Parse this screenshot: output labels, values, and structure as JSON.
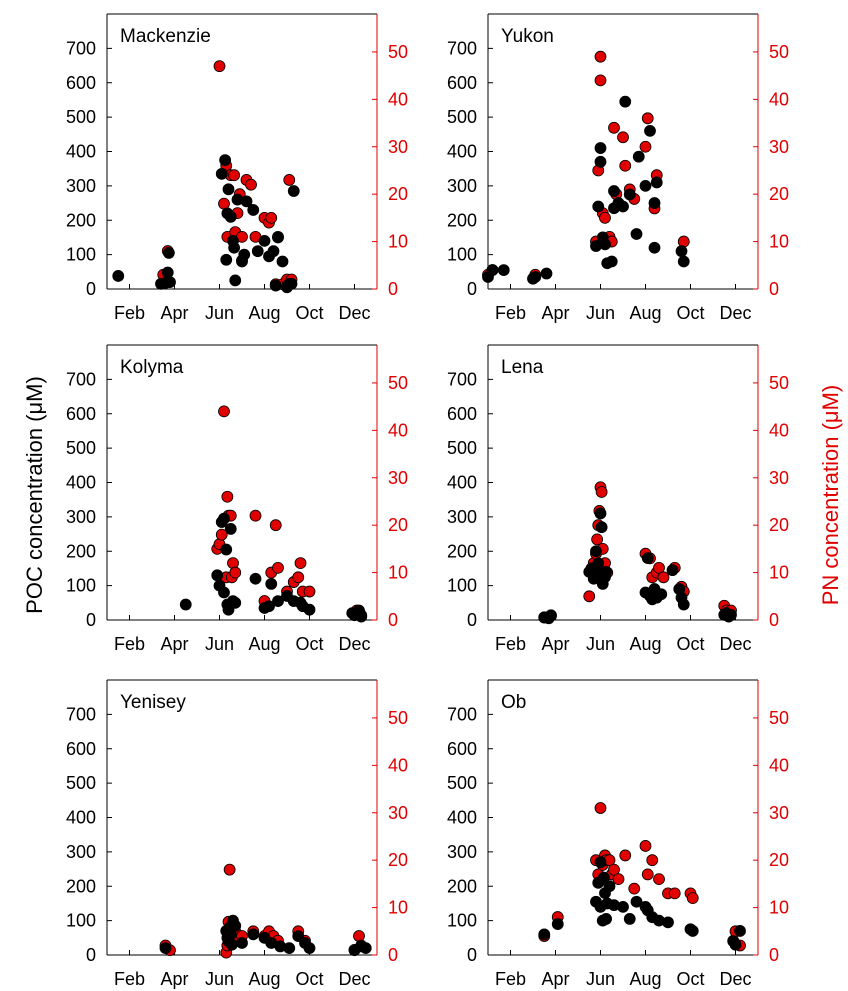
{
  "colors": {
    "poc": "#000000",
    "pn": "#e00000",
    "axis_left": "#000000",
    "axis_right": "#e00000"
  },
  "labels": {
    "ylabel_left": "POC concentration (μM)",
    "ylabel_right": "PN concentration (μM)"
  },
  "chart_data": {
    "type": "scatter",
    "layout": "3x2 panels, shared axes",
    "x_ticks": [
      "Feb",
      "Apr",
      "Jun",
      "Aug",
      "Oct",
      "Dec"
    ],
    "x_tick_months": [
      2,
      4,
      6,
      8,
      10,
      12
    ],
    "xlim": [
      1,
      13
    ],
    "poc_ylim": [
      0,
      800
    ],
    "poc_ticks": [
      0,
      100,
      200,
      300,
      400,
      500,
      600,
      700
    ],
    "pn_ylim": [
      0,
      58
    ],
    "pn_ticks": [
      0,
      10,
      20,
      30,
      40,
      50
    ],
    "grid": false,
    "panels": [
      {
        "title": "Mackenzie",
        "poc": [
          [
            1.5,
            38
          ],
          [
            3.4,
            15
          ],
          [
            3.6,
            18
          ],
          [
            3.7,
            48
          ],
          [
            3.75,
            105
          ],
          [
            3.8,
            20
          ],
          [
            6.1,
            335
          ],
          [
            6.25,
            375
          ],
          [
            6.3,
            85
          ],
          [
            6.35,
            220
          ],
          [
            6.4,
            290
          ],
          [
            6.5,
            210
          ],
          [
            6.6,
            140
          ],
          [
            6.65,
            120
          ],
          [
            6.7,
            25
          ],
          [
            6.8,
            260
          ],
          [
            7.0,
            80
          ],
          [
            7.1,
            100
          ],
          [
            7.2,
            255
          ],
          [
            7.5,
            230
          ],
          [
            7.7,
            110
          ],
          [
            8.0,
            140
          ],
          [
            8.2,
            95
          ],
          [
            8.4,
            110
          ],
          [
            8.5,
            10
          ],
          [
            8.6,
            150
          ],
          [
            8.8,
            80
          ],
          [
            9.0,
            5
          ],
          [
            9.1,
            15
          ],
          [
            9.2,
            15
          ],
          [
            9.3,
            285
          ]
        ],
        "pn": [
          [
            3.5,
            3
          ],
          [
            3.7,
            8
          ],
          [
            6.0,
            47
          ],
          [
            6.2,
            18
          ],
          [
            6.3,
            26
          ],
          [
            6.35,
            11
          ],
          [
            6.5,
            24
          ],
          [
            6.65,
            24
          ],
          [
            6.7,
            12
          ],
          [
            6.8,
            16
          ],
          [
            6.9,
            20
          ],
          [
            7.0,
            6
          ],
          [
            7.0,
            11
          ],
          [
            7.2,
            23
          ],
          [
            7.4,
            22
          ],
          [
            7.6,
            11
          ],
          [
            8.0,
            15
          ],
          [
            8.2,
            14
          ],
          [
            8.3,
            15
          ],
          [
            8.5,
            1
          ],
          [
            8.6,
            11
          ],
          [
            8.8,
            1
          ],
          [
            9.0,
            2
          ],
          [
            9.1,
            23
          ],
          [
            9.2,
            2
          ]
        ]
      },
      {
        "title": "Yukon",
        "poc": [
          [
            1.0,
            35
          ],
          [
            1.2,
            55
          ],
          [
            1.7,
            55
          ],
          [
            3.0,
            30
          ],
          [
            3.1,
            35
          ],
          [
            3.6,
            45
          ],
          [
            5.8,
            125
          ],
          [
            5.9,
            240
          ],
          [
            6.0,
            410
          ],
          [
            6.0,
            370
          ],
          [
            6.1,
            150
          ],
          [
            6.2,
            130
          ],
          [
            6.3,
            75
          ],
          [
            6.5,
            80
          ],
          [
            6.6,
            285
          ],
          [
            6.6,
            235
          ],
          [
            6.8,
            250
          ],
          [
            7.0,
            240
          ],
          [
            7.1,
            545
          ],
          [
            7.3,
            275
          ],
          [
            7.6,
            160
          ],
          [
            7.7,
            385
          ],
          [
            8.0,
            300
          ],
          [
            8.2,
            460
          ],
          [
            8.4,
            120
          ],
          [
            8.4,
            250
          ],
          [
            8.5,
            310
          ],
          [
            9.6,
            110
          ],
          [
            9.7,
            80
          ]
        ],
        "pn": [
          [
            1.0,
            3
          ],
          [
            1.2,
            4
          ],
          [
            3.1,
            3
          ],
          [
            5.8,
            10
          ],
          [
            5.9,
            25
          ],
          [
            6.0,
            44
          ],
          [
            6.0,
            49
          ],
          [
            6.1,
            16
          ],
          [
            6.2,
            15
          ],
          [
            6.4,
            11
          ],
          [
            6.5,
            10
          ],
          [
            6.6,
            34
          ],
          [
            6.7,
            20
          ],
          [
            7.0,
            32
          ],
          [
            7.1,
            26
          ],
          [
            7.3,
            21
          ],
          [
            7.5,
            19
          ],
          [
            8.0,
            30
          ],
          [
            8.1,
            36
          ],
          [
            8.4,
            17
          ],
          [
            8.5,
            24
          ],
          [
            9.7,
            10
          ]
        ]
      },
      {
        "title": "Kolyma",
        "poc": [
          [
            4.5,
            45
          ],
          [
            5.9,
            130
          ],
          [
            6.0,
            100
          ],
          [
            6.1,
            285
          ],
          [
            6.2,
            80
          ],
          [
            6.2,
            295
          ],
          [
            6.3,
            205
          ],
          [
            6.35,
            45
          ],
          [
            6.4,
            30
          ],
          [
            6.5,
            265
          ],
          [
            6.6,
            55
          ],
          [
            6.7,
            50
          ],
          [
            7.6,
            120
          ],
          [
            8.0,
            35
          ],
          [
            8.2,
            40
          ],
          [
            8.3,
            105
          ],
          [
            8.6,
            55
          ],
          [
            9.0,
            70
          ],
          [
            9.3,
            55
          ],
          [
            9.6,
            50
          ],
          [
            9.7,
            40
          ],
          [
            10.0,
            30
          ],
          [
            11.9,
            20
          ],
          [
            12.0,
            15
          ],
          [
            12.1,
            20
          ],
          [
            12.2,
            25
          ],
          [
            12.3,
            10
          ]
        ],
        "pn": [
          [
            5.9,
            15
          ],
          [
            6.0,
            16
          ],
          [
            6.1,
            18
          ],
          [
            6.2,
            44
          ],
          [
            6.3,
            9
          ],
          [
            6.35,
            26
          ],
          [
            6.4,
            22
          ],
          [
            6.5,
            22
          ],
          [
            6.55,
            9
          ],
          [
            6.6,
            12
          ],
          [
            6.7,
            10
          ],
          [
            7.6,
            22
          ],
          [
            8.0,
            4
          ],
          [
            8.3,
            10
          ],
          [
            8.5,
            20
          ],
          [
            8.6,
            11
          ],
          [
            9.0,
            6
          ],
          [
            9.3,
            8
          ],
          [
            9.5,
            9
          ],
          [
            9.6,
            12
          ],
          [
            9.7,
            6
          ],
          [
            10.0,
            6
          ],
          [
            12.0,
            1
          ],
          [
            12.1,
            2
          ],
          [
            12.2,
            2
          ],
          [
            12.3,
            1
          ]
        ]
      },
      {
        "title": "Lena",
        "poc": [
          [
            3.5,
            8
          ],
          [
            3.7,
            5
          ],
          [
            3.8,
            12
          ],
          [
            5.5,
            140
          ],
          [
            5.6,
            150
          ],
          [
            5.7,
            120
          ],
          [
            5.75,
            130
          ],
          [
            5.8,
            200
          ],
          [
            5.85,
            150
          ],
          [
            5.9,
            165
          ],
          [
            5.95,
            130
          ],
          [
            6.0,
            310
          ],
          [
            6.05,
            270
          ],
          [
            6.1,
            105
          ],
          [
            6.2,
            125
          ],
          [
            6.25,
            140
          ],
          [
            8.0,
            80
          ],
          [
            8.1,
            180
          ],
          [
            8.2,
            70
          ],
          [
            8.3,
            60
          ],
          [
            8.4,
            90
          ],
          [
            8.5,
            65
          ],
          [
            8.7,
            75
          ],
          [
            9.2,
            145
          ],
          [
            9.5,
            90
          ],
          [
            9.6,
            65
          ],
          [
            9.7,
            45
          ],
          [
            11.5,
            15
          ],
          [
            11.6,
            20
          ],
          [
            11.7,
            10
          ],
          [
            11.8,
            15
          ]
        ],
        "pn": [
          [
            3.5,
            0.5
          ],
          [
            3.8,
            1
          ],
          [
            5.5,
            5
          ],
          [
            5.7,
            12
          ],
          [
            5.8,
            14
          ],
          [
            5.85,
            17
          ],
          [
            5.9,
            20
          ],
          [
            5.95,
            23
          ],
          [
            6.0,
            28
          ],
          [
            6.05,
            27
          ],
          [
            6.1,
            15
          ],
          [
            6.2,
            12
          ],
          [
            6.3,
            10
          ],
          [
            8.0,
            14
          ],
          [
            8.2,
            13
          ],
          [
            8.3,
            9
          ],
          [
            8.5,
            10
          ],
          [
            8.6,
            11
          ],
          [
            8.8,
            9
          ],
          [
            9.3,
            11
          ],
          [
            9.6,
            7
          ],
          [
            9.7,
            6
          ],
          [
            11.5,
            3
          ],
          [
            11.6,
            2
          ],
          [
            11.8,
            2
          ]
        ]
      },
      {
        "title": "Yenisey",
        "poc": [
          [
            3.6,
            20
          ],
          [
            6.3,
            70
          ],
          [
            6.35,
            50
          ],
          [
            6.4,
            40
          ],
          [
            6.45,
            80
          ],
          [
            6.5,
            60
          ],
          [
            6.55,
            30
          ],
          [
            6.6,
            100
          ],
          [
            6.7,
            85
          ],
          [
            7.0,
            35
          ],
          [
            7.5,
            60
          ],
          [
            8.0,
            50
          ],
          [
            8.3,
            35
          ],
          [
            8.7,
            25
          ],
          [
            9.1,
            20
          ],
          [
            9.5,
            55
          ],
          [
            9.8,
            35
          ],
          [
            10.0,
            20
          ],
          [
            12.0,
            15
          ],
          [
            12.3,
            25
          ],
          [
            12.5,
            20
          ]
        ],
        "pn": [
          [
            3.6,
            2
          ],
          [
            3.8,
            1
          ],
          [
            6.3,
            0.5
          ],
          [
            6.35,
            2
          ],
          [
            6.4,
            7
          ],
          [
            6.45,
            18
          ],
          [
            6.5,
            5
          ],
          [
            6.55,
            4
          ],
          [
            6.6,
            6
          ],
          [
            6.7,
            5
          ],
          [
            6.8,
            3
          ],
          [
            7.0,
            4
          ],
          [
            7.5,
            5
          ],
          [
            8.0,
            4
          ],
          [
            8.2,
            5
          ],
          [
            8.4,
            4
          ],
          [
            8.6,
            3
          ],
          [
            9.5,
            5
          ],
          [
            9.8,
            3
          ],
          [
            12.0,
            1
          ],
          [
            12.2,
            4
          ],
          [
            12.3,
            2
          ]
        ]
      },
      {
        "title": "Ob",
        "poc": [
          [
            3.5,
            60
          ],
          [
            4.1,
            90
          ],
          [
            5.8,
            155
          ],
          [
            5.9,
            210
          ],
          [
            6.0,
            140
          ],
          [
            6.0,
            270
          ],
          [
            6.1,
            100
          ],
          [
            6.15,
            225
          ],
          [
            6.2,
            180
          ],
          [
            6.25,
            105
          ],
          [
            6.3,
            150
          ],
          [
            6.4,
            200
          ],
          [
            6.6,
            145
          ],
          [
            7.0,
            140
          ],
          [
            7.3,
            105
          ],
          [
            7.6,
            155
          ],
          [
            8.0,
            140
          ],
          [
            8.1,
            130
          ],
          [
            8.3,
            110
          ],
          [
            8.6,
            100
          ],
          [
            9.0,
            95
          ],
          [
            10.0,
            75
          ],
          [
            10.1,
            70
          ],
          [
            11.9,
            40
          ],
          [
            12.0,
            30
          ],
          [
            12.2,
            70
          ]
        ],
        "pn": [
          [
            3.5,
            4
          ],
          [
            4.1,
            8
          ],
          [
            5.8,
            20
          ],
          [
            5.9,
            17
          ],
          [
            6.0,
            31
          ],
          [
            6.1,
            19
          ],
          [
            6.2,
            21
          ],
          [
            6.25,
            20
          ],
          [
            6.4,
            20
          ],
          [
            6.5,
            17
          ],
          [
            6.6,
            18
          ],
          [
            6.8,
            16
          ],
          [
            7.1,
            21
          ],
          [
            7.5,
            14
          ],
          [
            8.0,
            23
          ],
          [
            8.1,
            17
          ],
          [
            8.3,
            20
          ],
          [
            8.6,
            16
          ],
          [
            9.0,
            13
          ],
          [
            9.3,
            13
          ],
          [
            10.0,
            13
          ],
          [
            10.1,
            12
          ],
          [
            11.9,
            3
          ],
          [
            12.0,
            5
          ],
          [
            12.2,
            2
          ]
        ]
      }
    ]
  }
}
